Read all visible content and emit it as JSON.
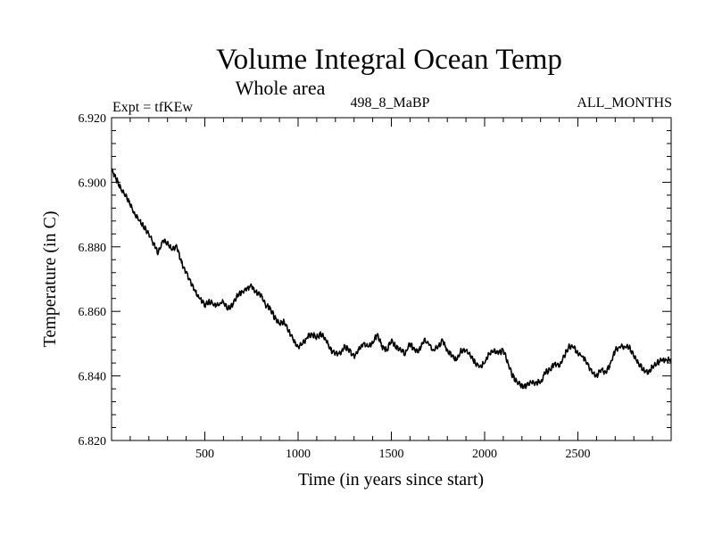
{
  "chart_data": {
    "type": "line",
    "title": "Volume Integral Ocean Temp",
    "subtitle": "Whole area",
    "annotations": {
      "left": "Expt = tfKEw",
      "center": "498_8_MaBP",
      "right": "ALL_MONTHS"
    },
    "xlabel": "Time (in years since start)",
    "ylabel": "Temperature (in C)",
    "xlim": [
      0,
      3000
    ],
    "ylim": [
      6.82,
      6.92
    ],
    "x_ticks": [
      500,
      1000,
      1500,
      2000,
      2500
    ],
    "x_tick_labels": [
      "500",
      "1000",
      "1500",
      "2000",
      "2500"
    ],
    "y_ticks": [
      6.82,
      6.84,
      6.86,
      6.88,
      6.9,
      6.92
    ],
    "y_tick_labels": [
      "6.820",
      "6.840",
      "6.860",
      "6.880",
      "6.900",
      "6.920"
    ],
    "grid": false,
    "series": [
      {
        "color": "#000000",
        "x": [
          0,
          25,
          50,
          75,
          100,
          125,
          150,
          175,
          200,
          225,
          250,
          275,
          300,
          325,
          350,
          375,
          400,
          425,
          450,
          475,
          500,
          525,
          550,
          575,
          600,
          625,
          650,
          675,
          700,
          725,
          750,
          775,
          800,
          825,
          850,
          875,
          900,
          925,
          950,
          975,
          1000,
          1025,
          1050,
          1075,
          1100,
          1125,
          1150,
          1175,
          1200,
          1225,
          1250,
          1275,
          1300,
          1325,
          1350,
          1375,
          1400,
          1425,
          1450,
          1475,
          1500,
          1525,
          1550,
          1575,
          1600,
          1625,
          1650,
          1675,
          1700,
          1725,
          1750,
          1775,
          1800,
          1825,
          1850,
          1875,
          1900,
          1925,
          1950,
          1975,
          2000,
          2025,
          2050,
          2075,
          2100,
          2125,
          2150,
          2175,
          2200,
          2225,
          2250,
          2275,
          2300,
          2325,
          2350,
          2375,
          2400,
          2425,
          2450,
          2475,
          2500,
          2525,
          2550,
          2575,
          2600,
          2625,
          2650,
          2675,
          2700,
          2725,
          2750,
          2775,
          2800,
          2825,
          2850,
          2875,
          2900,
          2925,
          2950,
          2975,
          3000
        ],
        "values": [
          6.904,
          6.901,
          6.898,
          6.896,
          6.893,
          6.89,
          6.888,
          6.886,
          6.884,
          6.881,
          6.878,
          6.882,
          6.881,
          6.879,
          6.88,
          6.875,
          6.872,
          6.869,
          6.866,
          6.864,
          6.862,
          6.863,
          6.862,
          6.862,
          6.863,
          6.861,
          6.862,
          6.865,
          6.866,
          6.867,
          6.868,
          6.866,
          6.865,
          6.862,
          6.861,
          6.858,
          6.856,
          6.857,
          6.854,
          6.851,
          6.849,
          6.85,
          6.852,
          6.853,
          6.852,
          6.853,
          6.851,
          6.848,
          6.847,
          6.847,
          6.849,
          6.848,
          6.846,
          6.848,
          6.85,
          6.849,
          6.85,
          6.853,
          6.849,
          6.848,
          6.851,
          6.849,
          6.848,
          6.847,
          6.85,
          6.848,
          6.848,
          6.851,
          6.85,
          6.848,
          6.849,
          6.851,
          6.848,
          6.846,
          6.845,
          6.848,
          6.848,
          6.846,
          6.844,
          6.843,
          6.844,
          6.847,
          6.848,
          6.847,
          6.848,
          6.844,
          6.84,
          6.838,
          6.837,
          6.837,
          6.838,
          6.838,
          6.838,
          6.841,
          6.842,
          6.844,
          6.843,
          6.846,
          6.849,
          6.849,
          6.847,
          6.846,
          6.844,
          6.841,
          6.84,
          6.842,
          6.841,
          6.844,
          6.848,
          6.849,
          6.849,
          6.849,
          6.846,
          6.844,
          6.842,
          6.841,
          6.843,
          6.844,
          6.845,
          6.845,
          6.845
        ]
      }
    ]
  }
}
